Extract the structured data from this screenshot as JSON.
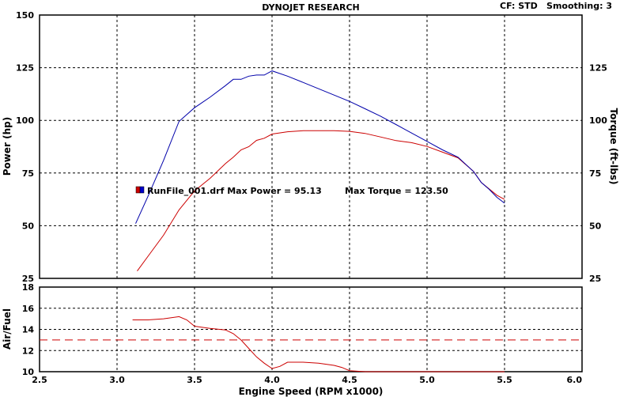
{
  "header": {
    "title": "DYNOJET RESEARCH",
    "cf_label": "CF: STD",
    "smoothing_label": "Smoothing: 3"
  },
  "legend": {
    "run_text": "RunFile_001.drf Max Power = 95.13",
    "torque_text": "Max Torque = 123.50",
    "swatch_colors": [
      "#cc0000",
      "#0000cc"
    ]
  },
  "colors": {
    "power": "#cc0000",
    "torque": "#0000aa",
    "afr": "#cc0000",
    "afr_target": "#cc0000",
    "grid": "#000000",
    "frame": "#000000"
  },
  "chart_data": [
    {
      "type": "line",
      "title": "DYNOJET RESEARCH",
      "xlabel": "Engine Speed (RPM x1000)",
      "ylabel": "Power (hp)",
      "y2label": "Torque (ft-lbs)",
      "xlim": [
        2.5,
        6.0
      ],
      "ylim": [
        25,
        150
      ],
      "y2lim": [
        25,
        150
      ],
      "x_ticks": [
        "2.5",
        "3.0",
        "3.5",
        "4.0",
        "4.5",
        "5.0",
        "5.5",
        "6.0"
      ],
      "y_ticks": [
        "25",
        "50",
        "75",
        "100",
        "125",
        "150"
      ],
      "y2_ticks": [
        "25",
        "50",
        "75",
        "100",
        "125"
      ],
      "grid": true,
      "series": [
        {
          "name": "Power",
          "axis": "left",
          "x": [
            3.13,
            3.2,
            3.3,
            3.4,
            3.5,
            3.6,
            3.7,
            3.75,
            3.8,
            3.85,
            3.9,
            3.95,
            4.0,
            4.1,
            4.2,
            4.3,
            4.4,
            4.5,
            4.6,
            4.7,
            4.8,
            4.9,
            5.0,
            5.1,
            5.2,
            5.3,
            5.35,
            5.4,
            5.45,
            5.5
          ],
          "values": [
            28.5,
            35.5,
            45.5,
            57.5,
            66.5,
            72.5,
            79.5,
            82.5,
            86,
            87.5,
            90.5,
            91.5,
            93.5,
            94.6,
            95.1,
            95.1,
            95.1,
            94.8,
            93.8,
            92.1,
            90.4,
            89.4,
            87.6,
            84.9,
            82.2,
            75.8,
            70.5,
            67.5,
            64.5,
            62.5
          ]
        },
        {
          "name": "Torque",
          "axis": "right",
          "x": [
            3.12,
            3.2,
            3.3,
            3.4,
            3.5,
            3.6,
            3.7,
            3.75,
            3.8,
            3.85,
            3.9,
            3.95,
            4.0,
            4.1,
            4.2,
            4.3,
            4.4,
            4.5,
            4.6,
            4.7,
            4.8,
            4.9,
            5.0,
            5.1,
            5.2,
            5.3,
            5.35,
            5.4,
            5.45,
            5.5
          ],
          "values": [
            51,
            64,
            81,
            99.5,
            106,
            111,
            116.5,
            119.5,
            119.5,
            121,
            121.5,
            121.5,
            123.5,
            121,
            118,
            115,
            112,
            109,
            105.5,
            102,
            98,
            94,
            90,
            86,
            82.5,
            75.7,
            70.5,
            67.3,
            63.5,
            60.7
          ]
        }
      ]
    },
    {
      "type": "line",
      "xlabel": "Engine Speed (RPM x1000)",
      "ylabel": "Air/Fuel",
      "xlim": [
        2.5,
        6.0
      ],
      "ylim": [
        10,
        18
      ],
      "x_ticks": [
        "2.5",
        "3.0",
        "3.5",
        "4.0",
        "4.5",
        "5.0",
        "5.5",
        "6.0"
      ],
      "y_ticks": [
        "10",
        "12",
        "14",
        "16",
        "18"
      ],
      "grid": true,
      "target_afr": 13.0,
      "series": [
        {
          "name": "Air/Fuel",
          "x": [
            3.1,
            3.2,
            3.3,
            3.4,
            3.45,
            3.5,
            3.6,
            3.7,
            3.75,
            3.8,
            3.85,
            3.9,
            3.95,
            4.0,
            4.05,
            4.1,
            4.2,
            4.3,
            4.4,
            4.45,
            4.5,
            4.6,
            4.8,
            5.0,
            5.2,
            5.4,
            5.5
          ],
          "values": [
            14.9,
            14.9,
            15.0,
            15.2,
            14.9,
            14.3,
            14.1,
            13.95,
            13.6,
            13.0,
            12.2,
            11.4,
            10.8,
            10.3,
            10.5,
            10.9,
            10.9,
            10.8,
            10.6,
            10.4,
            10.1,
            10.0,
            10.0,
            10.0,
            10.0,
            10.0,
            10.0
          ]
        }
      ]
    }
  ]
}
